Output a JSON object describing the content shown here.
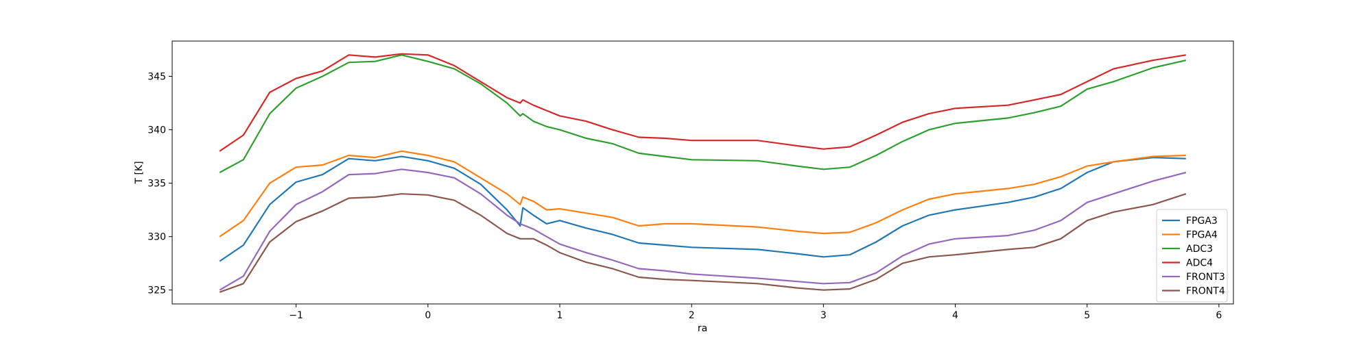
{
  "chart_data": {
    "type": "line",
    "title": "",
    "xlabel": "ra",
    "ylabel": "T [K]",
    "xlim": [
      -1.94,
      6.11
    ],
    "ylim": [
      323.7,
      348.3
    ],
    "xticks": [
      -1,
      0,
      1,
      2,
      3,
      4,
      5,
      6
    ],
    "xtick_labels": [
      "−1",
      "0",
      "1",
      "2",
      "3",
      "4",
      "5",
      "6"
    ],
    "yticks": [
      325,
      330,
      335,
      340,
      345
    ],
    "ytick_labels": [
      "325",
      "330",
      "335",
      "340",
      "345"
    ],
    "grid": false,
    "legend_placement": "lower-right",
    "x": [
      -1.58,
      -1.4,
      -1.2,
      -1,
      -0.8,
      -0.6,
      -0.4,
      -0.2,
      0,
      0.2,
      0.4,
      0.6,
      0.7,
      0.72,
      0.8,
      0.9,
      1.0,
      1.2,
      1.4,
      1.6,
      1.8,
      2.0,
      2.5,
      2.8,
      3.0,
      3.2,
      3.4,
      3.6,
      3.8,
      4.0,
      4.4,
      4.6,
      4.8,
      5.0,
      5.2,
      5.5,
      5.75
    ],
    "series": [
      {
        "name": "FPGA3",
        "color": "#1f77b4",
        "values": [
          327.7,
          329.2,
          333,
          335.1,
          335.8,
          337.3,
          337.1,
          337.5,
          337.1,
          336.4,
          334.9,
          332.5,
          331,
          332.7,
          332,
          331.2,
          331.5,
          330.8,
          330.2,
          329.4,
          329.2,
          329,
          328.8,
          328.4,
          328.1,
          328.3,
          329.5,
          331,
          332,
          332.5,
          333.2,
          333.7,
          334.5,
          336,
          337,
          337.4,
          337.3
        ]
      },
      {
        "name": "FPGA4",
        "color": "#ff7f0e",
        "values": [
          330,
          331.5,
          335,
          336.5,
          336.7,
          337.6,
          337.4,
          338,
          337.6,
          337,
          335.5,
          334,
          333,
          333.7,
          333.3,
          332.5,
          332.6,
          332.2,
          331.8,
          331,
          331.2,
          331.2,
          330.9,
          330.5,
          330.3,
          330.4,
          331.3,
          332.5,
          333.5,
          334,
          334.5,
          334.9,
          335.6,
          336.6,
          337,
          337.5,
          337.6
        ]
      },
      {
        "name": "ADC3",
        "color": "#2ca02c",
        "values": [
          336,
          337.2,
          341.5,
          343.9,
          345,
          346.3,
          346.4,
          347,
          346.4,
          345.7,
          344.3,
          342.5,
          341.3,
          341.5,
          340.8,
          340.3,
          340,
          339.2,
          338.7,
          337.8,
          337.5,
          337.2,
          337.1,
          336.6,
          336.3,
          336.5,
          337.6,
          338.9,
          340,
          340.6,
          341.1,
          341.6,
          342.2,
          343.8,
          344.5,
          345.8,
          346.5
        ]
      },
      {
        "name": "ADC4",
        "color": "#d62728",
        "values": [
          338,
          339.5,
          343.5,
          344.8,
          345.5,
          347,
          346.8,
          347.1,
          347,
          346,
          344.5,
          343,
          342.5,
          342.8,
          342.3,
          341.8,
          341.3,
          340.8,
          340,
          339.3,
          339.2,
          339,
          339,
          338.5,
          338.2,
          338.4,
          339.5,
          340.7,
          341.5,
          342,
          342.3,
          342.8,
          343.3,
          344.5,
          345.7,
          346.5,
          347
        ]
      },
      {
        "name": "FRONT3",
        "color": "#9467bd",
        "values": [
          325,
          326.3,
          330.5,
          333,
          334.2,
          335.8,
          335.9,
          336.3,
          336,
          335.5,
          334,
          332,
          331.2,
          331.1,
          330.7,
          330,
          329.3,
          328.5,
          327.8,
          327,
          326.8,
          326.5,
          326.1,
          325.8,
          325.6,
          325.7,
          326.6,
          328.2,
          329.3,
          329.8,
          330.1,
          330.6,
          331.5,
          333.2,
          334,
          335.2,
          336
        ]
      },
      {
        "name": "FRONT4",
        "color": "#8c564b",
        "values": [
          324.8,
          325.6,
          329.5,
          331.4,
          332.4,
          333.6,
          333.7,
          334,
          333.9,
          333.4,
          332,
          330.3,
          329.8,
          329.8,
          329.8,
          329.2,
          328.5,
          327.6,
          327,
          326.2,
          326,
          325.9,
          325.6,
          325.2,
          325,
          325.1,
          326,
          327.5,
          328.1,
          328.3,
          328.8,
          329,
          329.8,
          331.5,
          332.3,
          333,
          334
        ]
      }
    ]
  }
}
